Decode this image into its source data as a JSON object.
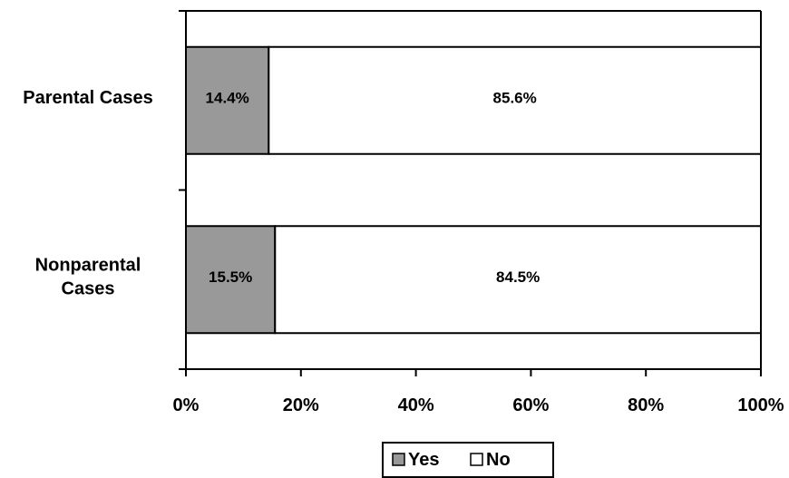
{
  "chart_data": {
    "type": "bar",
    "orientation": "horizontal",
    "stacked": "percent",
    "categories": [
      {
        "lines": [
          "Parental Cases"
        ]
      },
      {
        "lines": [
          "Nonparental",
          "Cases"
        ]
      }
    ],
    "series": [
      {
        "name": "Yes",
        "color": "#999999",
        "values": [
          14.4,
          15.5
        ],
        "labels": [
          "14.4%",
          "15.5%"
        ]
      },
      {
        "name": "No",
        "color": "#ffffff",
        "values": [
          85.6,
          84.5
        ],
        "labels": [
          "85.6%",
          "84.5%"
        ]
      }
    ],
    "xlim": [
      0,
      100
    ],
    "xticks": [
      "0%",
      "20%",
      "40%",
      "60%",
      "80%",
      "100%"
    ],
    "grid": false,
    "legend_position": "bottom"
  }
}
